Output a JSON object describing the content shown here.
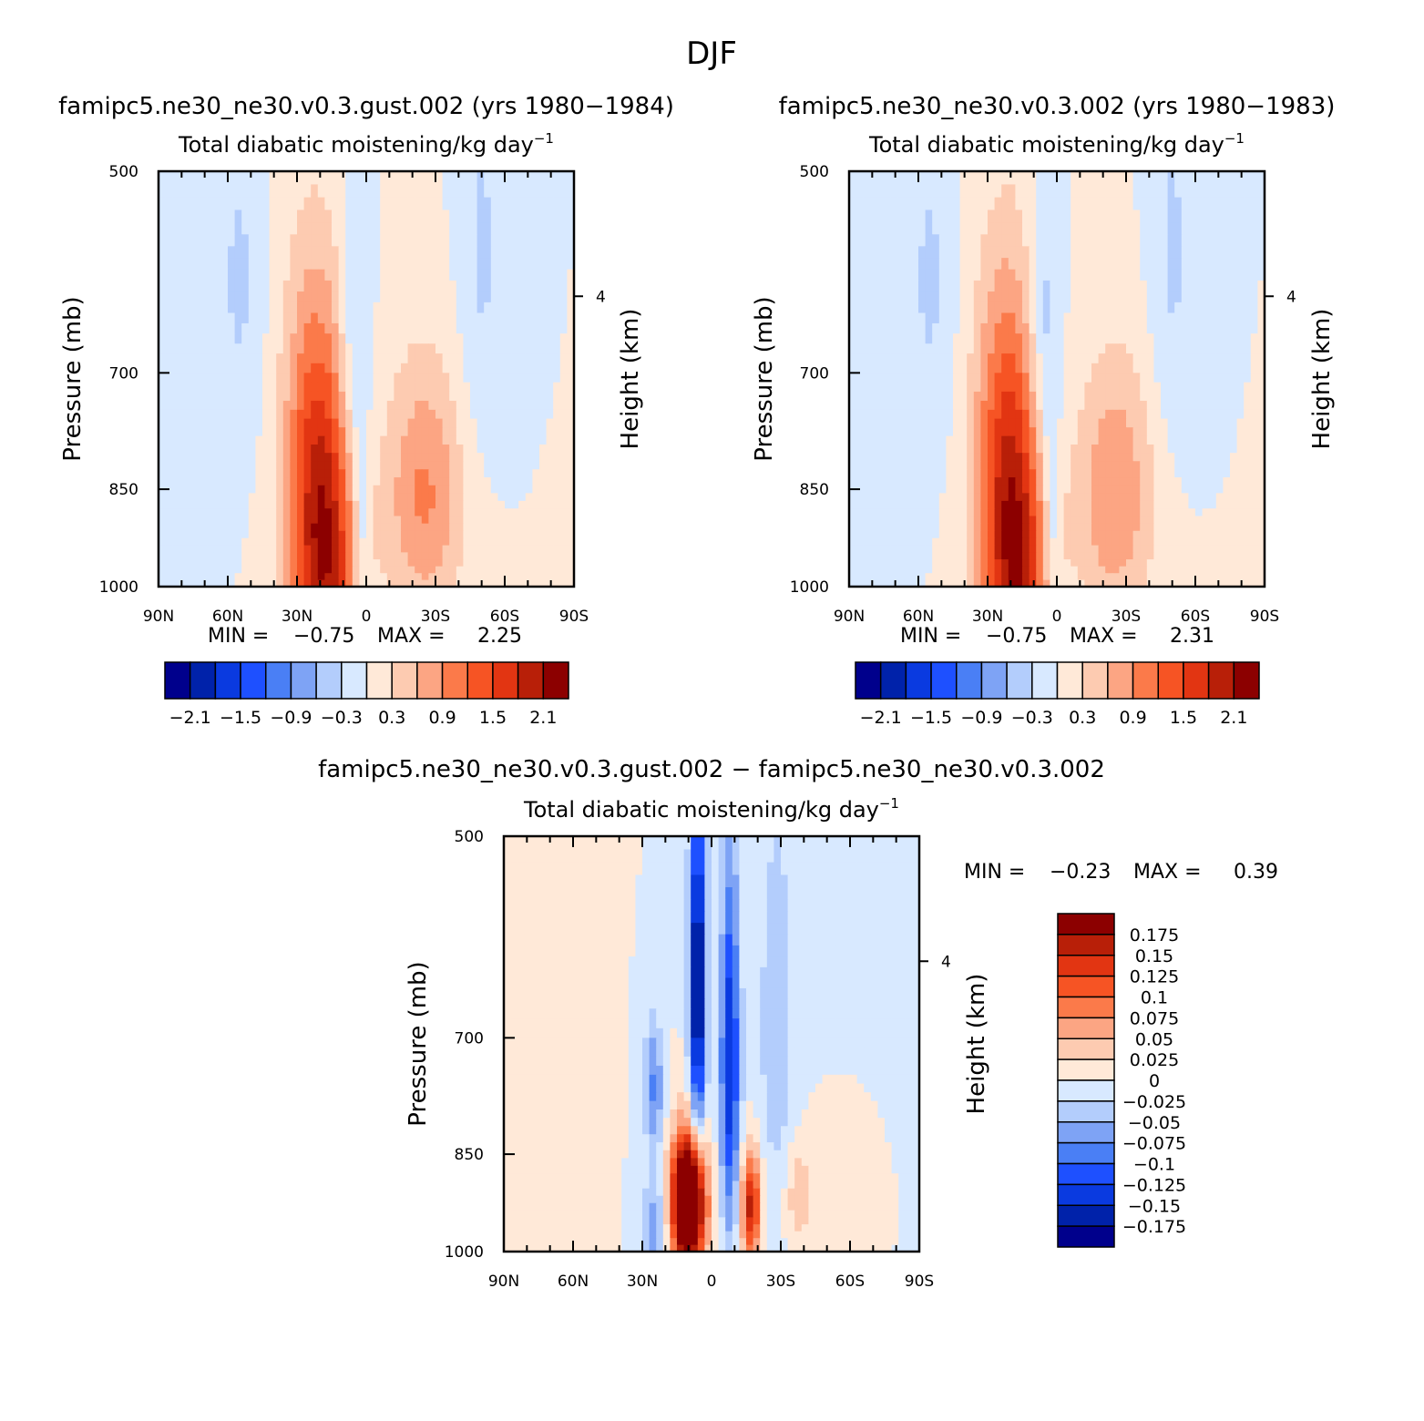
{
  "title": "DJF",
  "chart_data": [
    {
      "type": "heatmap",
      "title": "famipc5.ne30_ne30.v0.3.gust.002 (yrs 1980−1984)",
      "subtitle": "Total diabatic moistening/kg day",
      "subtitle_exponent": "−1",
      "ylabel": "Pressure (mb)",
      "ylabel_right": "Height (km)",
      "x_tick_labels": [
        "90N",
        "60N",
        "30N",
        "0",
        "30S",
        "60S",
        "90S"
      ],
      "y_tick_labels": [
        "500",
        "700",
        "850",
        "1000"
      ],
      "y_ticks": [
        500,
        700,
        850,
        1000
      ],
      "ylim": [
        500,
        1000
      ],
      "xlim": [
        90,
        -90
      ],
      "right_ticks": [
        "4"
      ],
      "right_tick_pressure": 616,
      "stats": {
        "min_label": "MIN =",
        "min": "−0.75",
        "max_label": "MAX =",
        "max": "2.25"
      },
      "colorbar_labels": [
        "−2.1",
        "−1.5",
        "−0.9",
        "−0.3",
        "0.3",
        "0.9",
        "1.5",
        "2.1"
      ],
      "levels": [
        -2.1,
        -1.8,
        -1.5,
        -1.2,
        -0.9,
        -0.6,
        -0.3,
        0,
        0.3,
        0.6,
        0.9,
        1.2,
        1.5,
        1.8,
        2.1
      ],
      "features": [
        {
          "lat": 55,
          "p": 600,
          "sigma_lat": 7,
          "sigma_p": 120,
          "amp": -0.35
        },
        {
          "lat": 5,
          "p": 680,
          "sigma_lat": 5,
          "sigma_p": 130,
          "amp": -0.55
        },
        {
          "lat": -50,
          "p": 580,
          "sigma_lat": 7,
          "sigma_p": 140,
          "amp": -0.35
        },
        {
          "lat": 18,
          "p": 960,
          "sigma_lat": 10,
          "sigma_p": 200,
          "amp": 2.0
        },
        {
          "lat": 25,
          "p": 760,
          "sigma_lat": 9,
          "sigma_p": 150,
          "amp": 0.6
        },
        {
          "lat": -25,
          "p": 860,
          "sigma_lat": 12,
          "sigma_p": 130,
          "amp": 0.95
        },
        {
          "lat": 2,
          "p": 900,
          "sigma_lat": 2.5,
          "sigma_p": 100,
          "amp": -0.55
        }
      ]
    },
    {
      "type": "heatmap",
      "title": "famipc5.ne30_ne30.v0.3.002 (yrs 1980−1983)",
      "subtitle": "Total diabatic moistening/kg day",
      "subtitle_exponent": "−1",
      "ylabel": "Pressure (mb)",
      "ylabel_right": "Height (km)",
      "x_tick_labels": [
        "90N",
        "60N",
        "30N",
        "0",
        "30S",
        "60S",
        "90S"
      ],
      "y_tick_labels": [
        "500",
        "700",
        "850",
        "1000"
      ],
      "y_ticks": [
        500,
        700,
        850,
        1000
      ],
      "ylim": [
        500,
        1000
      ],
      "xlim": [
        90,
        -90
      ],
      "right_ticks": [
        "4"
      ],
      "right_tick_pressure": 616,
      "stats": {
        "min_label": "MIN =",
        "min": "−0.75",
        "max_label": "MAX =",
        "max": "2.31"
      },
      "colorbar_labels": [
        "−2.1",
        "−1.5",
        "−0.9",
        "−0.3",
        "0.3",
        "0.9",
        "1.5",
        "2.1"
      ],
      "levels": [
        -2.1,
        -1.8,
        -1.5,
        -1.2,
        -0.9,
        -0.6,
        -0.3,
        0,
        0.3,
        0.6,
        0.9,
        1.2,
        1.5,
        1.8,
        2.1
      ],
      "features": [
        {
          "lat": 55,
          "p": 600,
          "sigma_lat": 7,
          "sigma_p": 120,
          "amp": -0.35
        },
        {
          "lat": 5,
          "p": 680,
          "sigma_lat": 5,
          "sigma_p": 130,
          "amp": -0.6
        },
        {
          "lat": -50,
          "p": 580,
          "sigma_lat": 7,
          "sigma_p": 140,
          "amp": -0.35
        },
        {
          "lat": 18,
          "p": 960,
          "sigma_lat": 10,
          "sigma_p": 200,
          "amp": 2.05
        },
        {
          "lat": 25,
          "p": 760,
          "sigma_lat": 9,
          "sigma_p": 150,
          "amp": 0.6
        },
        {
          "lat": -25,
          "p": 860,
          "sigma_lat": 12,
          "sigma_p": 130,
          "amp": 0.9
        },
        {
          "lat": 2,
          "p": 900,
          "sigma_lat": 2.5,
          "sigma_p": 100,
          "amp": -0.55
        }
      ]
    },
    {
      "type": "heatmap",
      "title": "famipc5.ne30_ne30.v0.3.gust.002 − famipc5.ne30_ne30.v0.3.002",
      "subtitle": "Total diabatic moistening/kg day",
      "subtitle_exponent": "−1",
      "ylabel": "Pressure (mb)",
      "ylabel_right": "Height (km)",
      "x_tick_labels": [
        "90N",
        "60N",
        "30N",
        "0",
        "30S",
        "60S",
        "90S"
      ],
      "y_tick_labels": [
        "500",
        "700",
        "850",
        "1000"
      ],
      "y_ticks": [
        500,
        700,
        850,
        1000
      ],
      "ylim": [
        500,
        1000
      ],
      "xlim": [
        90,
        -90
      ],
      "right_ticks": [
        "4"
      ],
      "right_tick_pressure": 616,
      "stats": {
        "min_label": "MIN =",
        "min": "−0.23",
        "max_label": "MAX =",
        "max": "0.39"
      },
      "colorbar_labels": [
        "0.175",
        "0.15",
        "0.125",
        "0.1",
        "0.075",
        "0.05",
        "0.025",
        "0",
        "−0.025",
        "−0.05",
        "−0.075",
        "−0.1",
        "−0.125",
        "−0.15",
        "−0.175"
      ],
      "levels": [
        -0.175,
        -0.15,
        -0.125,
        -0.1,
        -0.075,
        -0.05,
        -0.025,
        0,
        0.025,
        0.05,
        0.075,
        0.1,
        0.125,
        0.15,
        0.175
      ],
      "features": [
        {
          "lat": 10,
          "p": 920,
          "sigma_lat": 5,
          "sigma_p": 70,
          "amp": 0.35
        },
        {
          "lat": 6,
          "p": 640,
          "sigma_lat": 2.5,
          "sigma_p": 140,
          "amp": -0.2
        },
        {
          "lat": -8,
          "p": 730,
          "sigma_lat": 3,
          "sigma_p": 160,
          "amp": -0.15
        },
        {
          "lat": -17,
          "p": 930,
          "sigma_lat": 3,
          "sigma_p": 60,
          "amp": 0.16
        },
        {
          "lat": 25,
          "p": 760,
          "sigma_lat": 3,
          "sigma_p": 60,
          "amp": -0.08
        },
        {
          "lat": -28,
          "p": 680,
          "sigma_lat": 5,
          "sigma_p": 150,
          "amp": -0.05
        },
        {
          "lat": 25,
          "p": 960,
          "sigma_lat": 4,
          "sigma_p": 50,
          "amp": -0.07
        },
        {
          "lat": -38,
          "p": 910,
          "sigma_lat": 4,
          "sigma_p": 50,
          "amp": 0.05
        },
        {
          "lat": 70,
          "p": 700,
          "sigma_lat": 10,
          "sigma_p": 250,
          "amp": 0.015
        }
      ]
    }
  ],
  "colors": {
    "diverging": [
      "#00008c",
      "#0022aa",
      "#0a3ae0",
      "#1e50ff",
      "#4a7ff5",
      "#7ea3f5",
      "#b3cdfc",
      "#d8e9ff",
      "#ffe9d8",
      "#fdcbb1",
      "#fca583",
      "#fb7a4a",
      "#f65424",
      "#e23512",
      "#b81f08",
      "#8c0000"
    ]
  }
}
